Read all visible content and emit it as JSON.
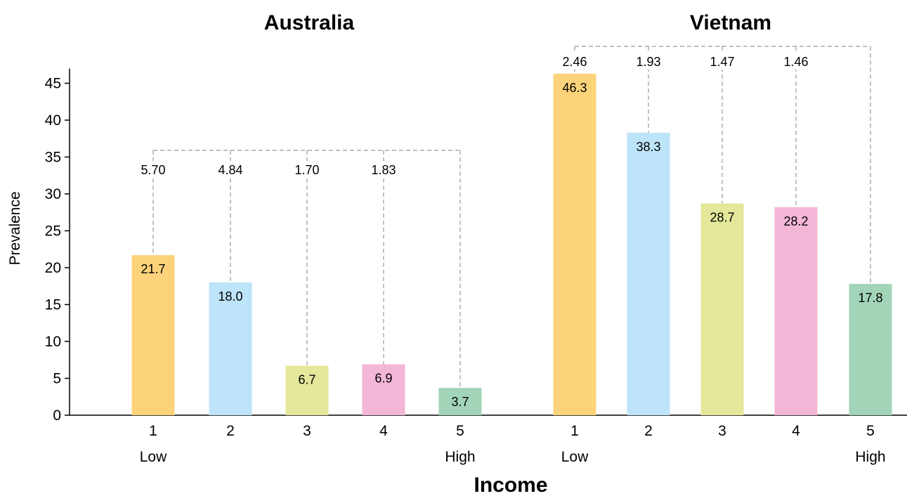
{
  "chart_data": {
    "type": "bar",
    "ylabel": "Prevalence",
    "xlabel": "Income",
    "ylim": [
      0,
      47
    ],
    "yticks": [
      0,
      5,
      10,
      15,
      20,
      25,
      30,
      35,
      40,
      45
    ],
    "grid": false,
    "colors": [
      "#fcd37a",
      "#bde4f8",
      "#e3e89a",
      "#f4b6d6",
      "#a2d4b7"
    ],
    "panels": [
      {
        "title": "Australia",
        "categories": [
          "1",
          "2",
          "3",
          "4",
          "5"
        ],
        "category_sublabels": [
          "Low",
          "",
          "",
          "",
          "High"
        ],
        "values": [
          21.7,
          18.0,
          6.7,
          6.9,
          3.7
        ],
        "value_labels": [
          "21.7",
          "18.0",
          "6.7",
          "6.9",
          "3.7"
        ],
        "ratios": [
          "5.70",
          "4.84",
          "1.70",
          "1.83"
        ]
      },
      {
        "title": "Vietnam",
        "categories": [
          "1",
          "2",
          "3",
          "4",
          "5"
        ],
        "category_sublabels": [
          "Low",
          "",
          "",
          "",
          "High"
        ],
        "values": [
          46.3,
          38.3,
          28.7,
          28.2,
          17.8
        ],
        "value_labels": [
          "46.3",
          "38.3",
          "28.7",
          "28.2",
          "17.8"
        ],
        "ratios": [
          "2.46",
          "1.93",
          "1.47",
          "1.46"
        ]
      }
    ]
  }
}
